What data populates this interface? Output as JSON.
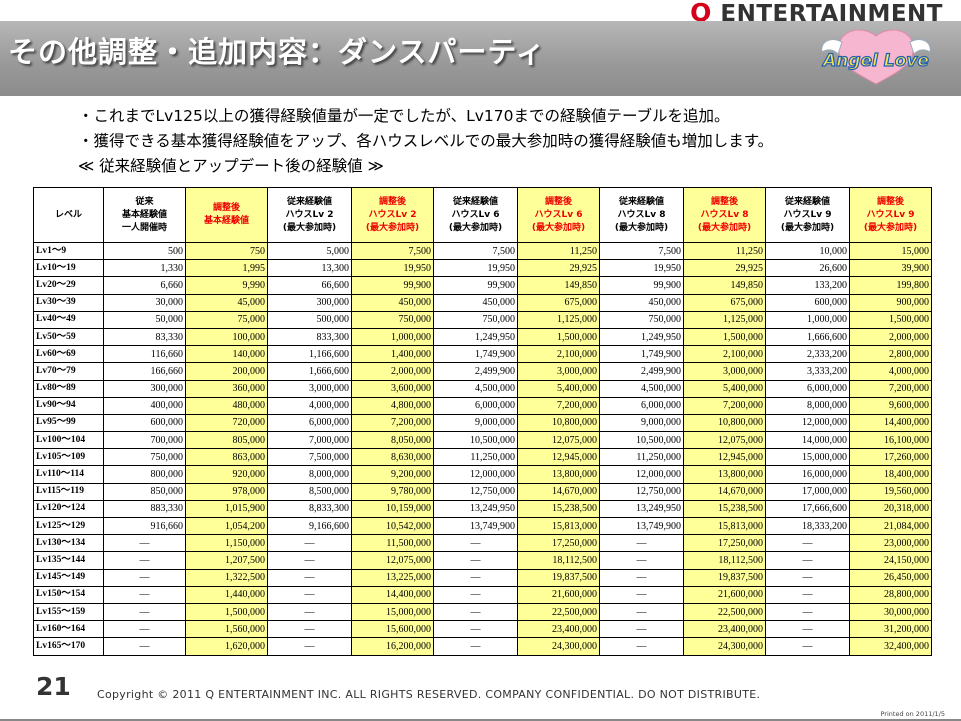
{
  "brand": "ENTERTAINMENT",
  "brand_q": "Q",
  "title": "その他調整・追加内容：ダンスパーティ",
  "logo_text": "Angel Love",
  "intro": [
    "・これまでLv125以上の獲得経験値量が一定でしたが、Lv170までの経験値テーブルを追加。",
    "・獲得できる基本獲得経験値をアップ、各ハウスレベルでの最大参加時の獲得経験値も増加します。",
    "≪ 従来経験値とアップデート後の経験値 ≫"
  ],
  "headers": [
    "レベル",
    "従来\n基本経験値\n一人開催時",
    "調整後\n基本経験値",
    "従来経験値\nハウスLv 2\n(最大参加時)",
    "調整後\nハウスLv 2\n(最大参加時)",
    "従来経験値\nハウスLv 6\n(最大参加時)",
    "調整後\nハウスLv 6\n(最大参加時)",
    "従来経験値\nハウスLv 8\n(最大参加時)",
    "調整後\nハウスLv 8\n(最大参加時)",
    "従来経験値\nハウスLv 9\n(最大参加時)",
    "調整後\nハウスLv 9\n(最大参加時)"
  ],
  "rows": [
    [
      "Lv1～9",
      "500",
      "750",
      "5,000",
      "7,500",
      "7,500",
      "11,250",
      "7,500",
      "11,250",
      "10,000",
      "15,000"
    ],
    [
      "Lv10～19",
      "1,330",
      "1,995",
      "13,300",
      "19,950",
      "19,950",
      "29,925",
      "19,950",
      "29,925",
      "26,600",
      "39,900"
    ],
    [
      "Lv20～29",
      "6,660",
      "9,990",
      "66,600",
      "99,900",
      "99,900",
      "149,850",
      "99,900",
      "149,850",
      "133,200",
      "199,800"
    ],
    [
      "Lv30～39",
      "30,000",
      "45,000",
      "300,000",
      "450,000",
      "450,000",
      "675,000",
      "450,000",
      "675,000",
      "600,000",
      "900,000"
    ],
    [
      "Lv40～49",
      "50,000",
      "75,000",
      "500,000",
      "750,000",
      "750,000",
      "1,125,000",
      "750,000",
      "1,125,000",
      "1,000,000",
      "1,500,000"
    ],
    [
      "Lv50～59",
      "83,330",
      "100,000",
      "833,300",
      "1,000,000",
      "1,249,950",
      "1,500,000",
      "1,249,950",
      "1,500,000",
      "1,666,600",
      "2,000,000"
    ],
    [
      "Lv60～69",
      "116,660",
      "140,000",
      "1,166,600",
      "1,400,000",
      "1,749,900",
      "2,100,000",
      "1,749,900",
      "2,100,000",
      "2,333,200",
      "2,800,000"
    ],
    [
      "Lv70～79",
      "166,660",
      "200,000",
      "1,666,600",
      "2,000,000",
      "2,499,900",
      "3,000,000",
      "2,499,900",
      "3,000,000",
      "3,333,200",
      "4,000,000"
    ],
    [
      "Lv80～89",
      "300,000",
      "360,000",
      "3,000,000",
      "3,600,000",
      "4,500,000",
      "5,400,000",
      "4,500,000",
      "5,400,000",
      "6,000,000",
      "7,200,000"
    ],
    [
      "Lv90～94",
      "400,000",
      "480,000",
      "4,000,000",
      "4,800,000",
      "6,000,000",
      "7,200,000",
      "6,000,000",
      "7,200,000",
      "8,000,000",
      "9,600,000"
    ],
    [
      "Lv95～99",
      "600,000",
      "720,000",
      "6,000,000",
      "7,200,000",
      "9,000,000",
      "10,800,000",
      "9,000,000",
      "10,800,000",
      "12,000,000",
      "14,400,000"
    ],
    [
      "Lv100～104",
      "700,000",
      "805,000",
      "7,000,000",
      "8,050,000",
      "10,500,000",
      "12,075,000",
      "10,500,000",
      "12,075,000",
      "14,000,000",
      "16,100,000"
    ],
    [
      "Lv105～109",
      "750,000",
      "863,000",
      "7,500,000",
      "8,630,000",
      "11,250,000",
      "12,945,000",
      "11,250,000",
      "12,945,000",
      "15,000,000",
      "17,260,000"
    ],
    [
      "Lv110～114",
      "800,000",
      "920,000",
      "8,000,000",
      "9,200,000",
      "12,000,000",
      "13,800,000",
      "12,000,000",
      "13,800,000",
      "16,000,000",
      "18,400,000"
    ],
    [
      "Lv115～119",
      "850,000",
      "978,000",
      "8,500,000",
      "9,780,000",
      "12,750,000",
      "14,670,000",
      "12,750,000",
      "14,670,000",
      "17,000,000",
      "19,560,000"
    ],
    [
      "Lv120～124",
      "883,330",
      "1,015,900",
      "8,833,300",
      "10,159,000",
      "13,249,950",
      "15,238,500",
      "13,249,950",
      "15,238,500",
      "17,666,600",
      "20,318,000"
    ],
    [
      "Lv125～129",
      "916,660",
      "1,054,200",
      "9,166,600",
      "10,542,000",
      "13,749,900",
      "15,813,000",
      "13,749,900",
      "15,813,000",
      "18,333,200",
      "21,084,000"
    ],
    [
      "Lv130～134",
      "—",
      "1,150,000",
      "—",
      "11,500,000",
      "—",
      "17,250,000",
      "—",
      "17,250,000",
      "—",
      "23,000,000"
    ],
    [
      "Lv135～144",
      "—",
      "1,207,500",
      "—",
      "12,075,000",
      "—",
      "18,112,500",
      "—",
      "18,112,500",
      "—",
      "24,150,000"
    ],
    [
      "Lv145～149",
      "—",
      "1,322,500",
      "—",
      "13,225,000",
      "—",
      "19,837,500",
      "—",
      "19,837,500",
      "—",
      "26,450,000"
    ],
    [
      "Lv150～154",
      "—",
      "1,440,000",
      "—",
      "14,400,000",
      "—",
      "21,600,000",
      "—",
      "21,600,000",
      "—",
      "28,800,000"
    ],
    [
      "Lv155～159",
      "—",
      "1,500,000",
      "—",
      "15,000,000",
      "—",
      "22,500,000",
      "—",
      "22,500,000",
      "—",
      "30,000,000"
    ],
    [
      "Lv160～164",
      "—",
      "1,560,000",
      "—",
      "15,600,000",
      "—",
      "23,400,000",
      "—",
      "23,400,000",
      "—",
      "31,200,000"
    ],
    [
      "Lv165～170",
      "—",
      "1,620,000",
      "—",
      "16,200,000",
      "—",
      "24,300,000",
      "—",
      "24,300,000",
      "—",
      "32,400,000"
    ]
  ],
  "colors": {
    "highlight": "#ffff99",
    "highlight_text": "#ee0000",
    "brand_q": "#d6001c"
  },
  "page_number": "21",
  "copyright": "Copyright © 2011 Q ENTERTAINMENT INC. ALL RIGHTS RESERVED.  COMPANY CONFIDENTIAL.  DO NOT DISTRIBUTE.",
  "printed": "Printed on 2011/1/5"
}
